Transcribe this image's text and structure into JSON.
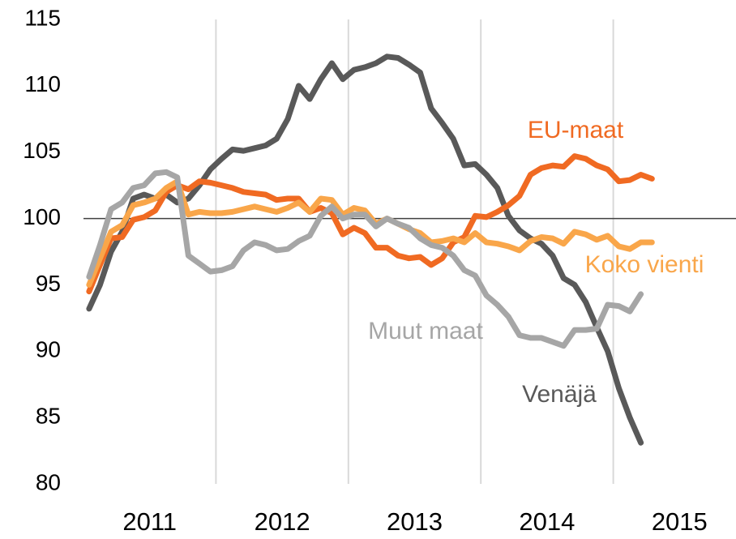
{
  "chart_data": {
    "type": "line",
    "x": [
      2011.042,
      2011.125,
      2011.208,
      2011.292,
      2011.375,
      2011.458,
      2011.542,
      2011.625,
      2011.708,
      2011.792,
      2011.875,
      2011.958,
      2012.042,
      2012.125,
      2012.208,
      2012.292,
      2012.375,
      2012.458,
      2012.542,
      2012.625,
      2012.708,
      2012.792,
      2012.875,
      2012.958,
      2013.042,
      2013.125,
      2013.208,
      2013.292,
      2013.375,
      2013.458,
      2013.542,
      2013.625,
      2013.708,
      2013.792,
      2013.875,
      2013.958,
      2014.042,
      2014.125,
      2014.208,
      2014.292,
      2014.375,
      2014.458,
      2014.542,
      2014.625,
      2014.708,
      2014.792,
      2014.875,
      2014.958,
      2015.042,
      2015.125,
      2015.208,
      2015.292
    ],
    "series": [
      {
        "name": "Venäjä",
        "color": "#595959",
        "values": [
          93.2,
          95,
          97.5,
          99,
          101.5,
          101.8,
          101.5,
          101.8,
          101.2,
          101.5,
          102.5,
          103.7,
          104.5,
          105.2,
          105.1,
          105.3,
          105.5,
          106,
          107.5,
          110,
          109,
          110.5,
          111.7,
          110.5,
          111.2,
          111.4,
          111.7,
          112.2,
          112.1,
          111.6,
          111,
          108.3,
          107.2,
          106,
          104,
          104.1,
          103.3,
          102.3,
          100.2,
          99.1,
          98.5,
          98.1,
          97.2,
          95.5,
          95,
          93.7,
          91.8,
          90,
          87.2,
          85,
          83.1,
          null
        ]
      },
      {
        "name": "EU-maat",
        "color": "#f06a22",
        "values": [
          94.5,
          96.5,
          98.5,
          98.6,
          99.9,
          100.1,
          100.6,
          102,
          102.5,
          102.2,
          102.8,
          102.7,
          102.5,
          102.3,
          102,
          101.9,
          101.8,
          101.4,
          101.5,
          101.5,
          100.5,
          100.8,
          100.4,
          98.8,
          99.3,
          98.9,
          97.8,
          97.8,
          97.2,
          97,
          97.1,
          96.5,
          97,
          98.2,
          98.6,
          100.2,
          100.1,
          100.5,
          101,
          101.7,
          103.3,
          103.8,
          104,
          103.9,
          104.7,
          104.5,
          104,
          103.7,
          102.8,
          102.9,
          103.3,
          103
        ]
      },
      {
        "name": "Koko vienti",
        "color": "#f9a64a",
        "values": [
          95,
          97,
          99,
          99.5,
          101,
          101.2,
          101.5,
          102.3,
          102.8,
          100.3,
          100.5,
          100.4,
          100.4,
          100.5,
          100.7,
          100.9,
          100.7,
          100.5,
          100.8,
          101.2,
          100.5,
          101.5,
          101.4,
          100.3,
          100.8,
          100.6,
          99.6,
          100,
          99.6,
          99.2,
          98.9,
          98.2,
          98.3,
          98.5,
          98.2,
          98.9,
          98.2,
          98.1,
          97.9,
          97.6,
          98.3,
          98.6,
          98.5,
          98.1,
          99,
          98.8,
          98.4,
          98.7,
          97.9,
          97.7,
          98.2,
          98.2
        ]
      },
      {
        "name": "Muut maat",
        "color": "#a6a6a6",
        "values": [
          95.6,
          98,
          100.7,
          101.2,
          102.3,
          102.5,
          103.4,
          103.5,
          103.1,
          97.2,
          96.6,
          96,
          96.1,
          96.4,
          97.6,
          98.2,
          98,
          97.6,
          97.7,
          98.3,
          98.7,
          100.2,
          100.9,
          100,
          100.3,
          100.3,
          99.4,
          100,
          99.6,
          99.3,
          98.5,
          98,
          97.8,
          97.2,
          96.1,
          95.7,
          94.2,
          93.5,
          92.6,
          91.2,
          91,
          91,
          90.7,
          90.4,
          91.6,
          91.6,
          91.7,
          93.5,
          93.4,
          93,
          94.3,
          null
        ]
      }
    ],
    "xlim": [
      2011,
      2016
    ],
    "xticks": [
      2011,
      2012,
      2013,
      2014,
      2015
    ],
    "ylim": [
      80,
      115
    ],
    "yticks": [
      80,
      85,
      90,
      95,
      100,
      105,
      110,
      115
    ],
    "reference_line": 100,
    "grid": true
  }
}
